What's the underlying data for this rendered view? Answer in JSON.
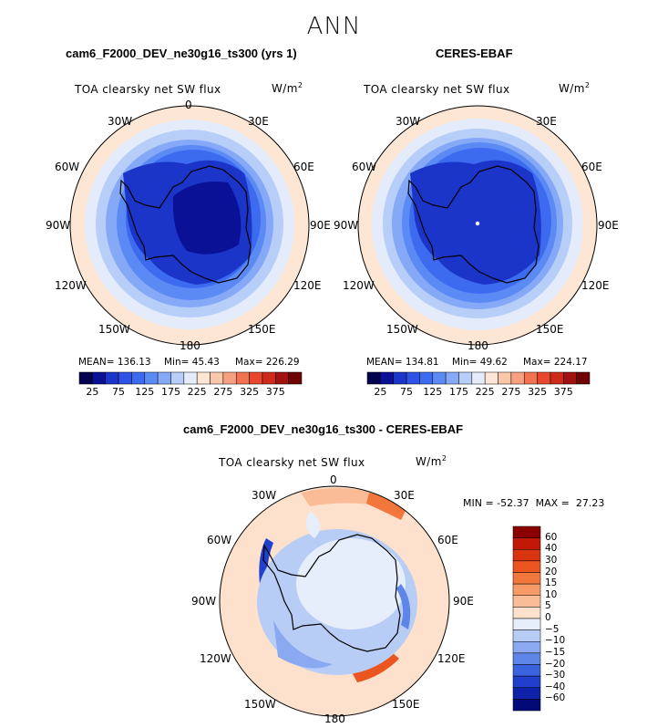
{
  "season": "ANN",
  "panels": [
    {
      "title": "cam6_F2000_DEV_ne30g16_ts300 (yrs 1)",
      "variable": "TOA clearsky net SW flux",
      "units_text": "W/m",
      "units_sup": "2",
      "stats": {
        "mean": "MEAN= 136.13",
        "min": "Min=  45.43",
        "max": "Max= 226.29"
      }
    },
    {
      "title": "CERES-EBAF",
      "variable": "TOA clearsky net SW flux",
      "units_text": "W/m",
      "units_sup": "2",
      "stats": {
        "mean": "MEAN= 134.81",
        "min": "Min=  49.62",
        "max": "Max= 224.17"
      }
    },
    {
      "title": "cam6_F2000_DEV_ne30g16_ts300 - CERES-EBAF",
      "variable": "TOA clearsky net SW flux",
      "units_text": "W/m",
      "units_sup": "2",
      "minmax": "MIN = -52.37  MAX =  27.23"
    }
  ],
  "longitudes": [
    "0",
    "30E",
    "60E",
    "90E",
    "120E",
    "150E",
    "180",
    "150W",
    "120W",
    "90W",
    "60W",
    "30W"
  ],
  "colorbar_seq": {
    "ticks": [
      "25",
      "75",
      "125",
      "175",
      "225",
      "275",
      "325",
      "375"
    ],
    "colors": [
      "#02024e",
      "#0a1196",
      "#1b35c9",
      "#2e52e6",
      "#3d6bf0",
      "#5b8af5",
      "#86a9f7",
      "#b7cff8",
      "#e4ecfb",
      "#fde6d4",
      "#fbc7ab",
      "#f7a07f",
      "#f27352",
      "#e8482d",
      "#ce2a1a",
      "#a21010",
      "#6e0404"
    ]
  },
  "colorbar_diff": {
    "ticks": [
      "60",
      "40",
      "30",
      "20",
      "15",
      "10",
      "5",
      "0",
      "−5",
      "−10",
      "−15",
      "−20",
      "−30",
      "−40",
      "−60"
    ],
    "colors": [
      "#8b0000",
      "#c21808",
      "#d93410",
      "#ea5520",
      "#f2773c",
      "#f79b68",
      "#fabc96",
      "#fde1cc",
      "#e6eefb",
      "#b8cdf6",
      "#8aa9f0",
      "#5e85e8",
      "#3b62df",
      "#1f3fcc",
      "#0d22a8",
      "#020a78"
    ]
  },
  "palette": {
    "antarctic_core": "#1435c4",
    "coast": "#000000",
    "ocean_warm": "#fde1cc"
  }
}
